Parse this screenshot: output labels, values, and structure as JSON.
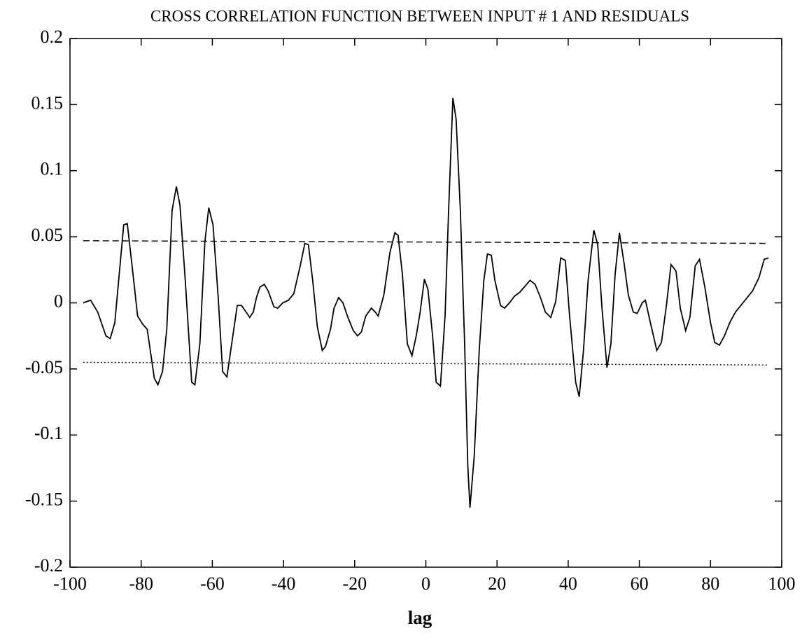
{
  "chart_data": {
    "type": "line",
    "title": "CROSS CORRELATION FUNCTION BETWEEN INPUT # 1 AND RESIDUALS",
    "x_label": "lag",
    "xlim": [
      -100,
      100
    ],
    "xticks": [
      -100,
      -80,
      -60,
      -40,
      -20,
      0,
      20,
      40,
      60,
      80,
      100
    ],
    "ylim": [
      -0.2,
      0.2
    ],
    "yticks": [
      -0.2,
      -0.15,
      -0.1,
      -0.05,
      0,
      0.05,
      0.1,
      0.15,
      0.2
    ],
    "grid": false,
    "series": [
      {
        "color": "#000000",
        "style": "solid",
        "x": [
          -96.3,
          -94.2,
          -92.2,
          -89.9,
          -88.7,
          -87.4,
          -84.9,
          -83.9,
          -82.3,
          -81.0,
          -79.6,
          -78.3,
          -76.3,
          -75.3,
          -74.0,
          -72.8,
          -71.3,
          -70.1,
          -69.1,
          -67.6,
          -65.8,
          -64.9,
          -63.5,
          -62.1,
          -61.0,
          -59.8,
          -58.4,
          -57.1,
          -55.9,
          -54.4,
          -53.0,
          -51.8,
          -50.5,
          -49.5,
          -48.5,
          -47.6,
          -46.6,
          -45.4,
          -44.3,
          -42.7,
          -41.6,
          -40.2,
          -38.6,
          -37.1,
          -35.3,
          -34.0,
          -33.0,
          -31.8,
          -30.5,
          -29.1,
          -28.2,
          -26.8,
          -25.8,
          -24.5,
          -23.3,
          -21.9,
          -20.4,
          -19.2,
          -18.1,
          -16.9,
          -15.3,
          -14.2,
          -13.4,
          -11.8,
          -10.1,
          -8.7,
          -7.8,
          -6.6,
          -5.2,
          -3.9,
          -2.7,
          -1.6,
          -0.4,
          0.6,
          1.9,
          2.9,
          4.1,
          5.4,
          6.4,
          7.6,
          8.5,
          9.7,
          10.9,
          11.8,
          12.4,
          13.6,
          15.0,
          16.3,
          17.3,
          18.4,
          19.4,
          21.0,
          22.1,
          23.5,
          24.9,
          26.4,
          28.0,
          29.3,
          30.7,
          32.2,
          33.6,
          35.1,
          36.5,
          37.9,
          39.2,
          40.4,
          42.1,
          43.1,
          44.3,
          45.6,
          47.2,
          48.3,
          49.5,
          50.9,
          52.0,
          53.2,
          54.4,
          55.7,
          56.9,
          58.3,
          59.4,
          60.8,
          61.7,
          63.1,
          64.9,
          66.2,
          67.6,
          68.9,
          70.3,
          71.5,
          73.0,
          74.2,
          75.7,
          76.9,
          78.4,
          80.0,
          81.2,
          82.5,
          83.9,
          85.4,
          87.0,
          88.5,
          90.3,
          91.8,
          93.6,
          95.1,
          96.3
        ],
        "values": [
          0,
          0.002,
          -0.007,
          -0.025,
          -0.027,
          -0.015,
          0.059,
          0.06,
          0.022,
          -0.01,
          -0.016,
          -0.02,
          -0.057,
          -0.062,
          -0.052,
          -0.02,
          0.07,
          0.088,
          0.074,
          0.017,
          -0.06,
          -0.062,
          -0.031,
          0.046,
          0.072,
          0.059,
          0.006,
          -0.052,
          -0.056,
          -0.028,
          -0.002,
          -0.002,
          -0.007,
          -0.011,
          -0.007,
          0.004,
          0.012,
          0.014,
          0.009,
          -0.003,
          -0.004,
          0,
          0.002,
          0.007,
          0.028,
          0.045,
          0.044,
          0.017,
          -0.018,
          -0.036,
          -0.033,
          -0.02,
          -0.004,
          0.004,
          0,
          -0.011,
          -0.021,
          -0.025,
          -0.022,
          -0.01,
          -0.004,
          -0.007,
          -0.01,
          0.006,
          0.038,
          0.053,
          0.051,
          0.022,
          -0.031,
          -0.04,
          -0.025,
          -0.007,
          0.018,
          0.01,
          -0.025,
          -0.06,
          -0.063,
          -0.01,
          0.07,
          0.155,
          0.139,
          0.07,
          -0.031,
          -0.124,
          -0.155,
          -0.116,
          -0.036,
          0.017,
          0.037,
          0.036,
          0.017,
          -0.002,
          -0.004,
          0,
          0.005,
          0.008,
          0.013,
          0.017,
          0.014,
          0.004,
          -0.007,
          -0.011,
          0.001,
          0.034,
          0.032,
          -0.01,
          -0.06,
          -0.071,
          -0.036,
          0.017,
          0.055,
          0.044,
          -0.004,
          -0.049,
          -0.031,
          0.022,
          0.053,
          0.03,
          0.006,
          -0.007,
          -0.008,
          0,
          0.002,
          -0.015,
          -0.036,
          -0.03,
          -0.002,
          0.029,
          0.024,
          -0.004,
          -0.021,
          -0.011,
          0.028,
          0.033,
          0.012,
          -0.015,
          -0.03,
          -0.032,
          -0.025,
          -0.015,
          -0.007,
          -0.002,
          0.004,
          0.009,
          0.019,
          0.033,
          0.034
        ]
      },
      {
        "color": "#000000",
        "style": "dashed",
        "x": [
          -96.3,
          96.3
        ],
        "values": [
          0.047,
          0.045
        ]
      },
      {
        "color": "#000000",
        "style": "dotted",
        "x": [
          -96.3,
          96.3
        ],
        "values": [
          -0.045,
          -0.047
        ]
      }
    ]
  }
}
